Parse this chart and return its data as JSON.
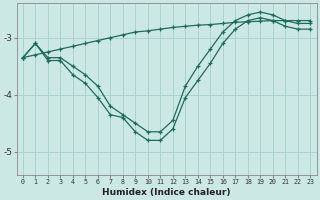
{
  "x": [
    0,
    1,
    2,
    3,
    4,
    5,
    6,
    7,
    8,
    9,
    10,
    11,
    12,
    13,
    14,
    15,
    16,
    17,
    18,
    19,
    20,
    21,
    22,
    23
  ],
  "line_top": [
    -3.35,
    -3.3,
    -3.25,
    -3.2,
    -3.15,
    -3.1,
    -3.05,
    -3.0,
    -2.95,
    -2.9,
    -2.88,
    -2.85,
    -2.82,
    -2.8,
    -2.78,
    -2.77,
    -2.75,
    -2.73,
    -2.72,
    -2.71,
    -2.7,
    -2.7,
    -2.7,
    -2.7
  ],
  "line_mid": [
    -3.35,
    -3.1,
    -3.35,
    -3.35,
    -3.5,
    -3.65,
    -3.85,
    -4.2,
    -4.35,
    -4.5,
    -4.65,
    -4.65,
    -4.45,
    -3.85,
    -3.5,
    -3.2,
    -2.9,
    -2.7,
    -2.6,
    -2.55,
    -2.6,
    -2.7,
    -2.75,
    -2.75
  ],
  "line_bot": [
    -3.35,
    -3.1,
    -3.4,
    -3.4,
    -3.65,
    -3.8,
    -4.05,
    -4.35,
    -4.4,
    -4.65,
    -4.8,
    -4.8,
    -4.6,
    -4.05,
    -3.75,
    -3.45,
    -3.1,
    -2.85,
    -2.7,
    -2.65,
    -2.7,
    -2.8,
    -2.85,
    -2.85
  ],
  "line_color": "#1e6b5a",
  "bg_color": "#cce8e4",
  "grid_color": "#aad4ce",
  "xlabel": "Humidex (Indice chaleur)",
  "yticks": [
    -5,
    -4,
    -3
  ],
  "ylim": [
    -5.4,
    -2.4
  ],
  "xlim": [
    -0.5,
    23.5
  ]
}
